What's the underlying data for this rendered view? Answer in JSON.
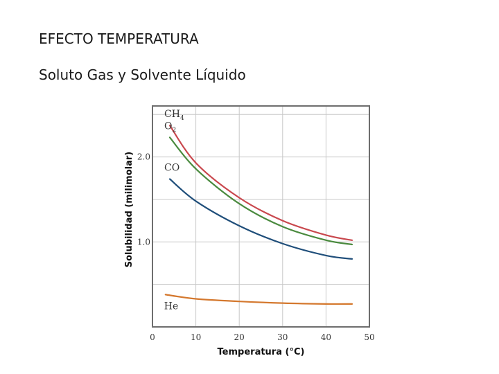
{
  "slide": {
    "title": "EFECTO TEMPERATURA",
    "subtitle": "Soluto Gas y Solvente Líquido"
  },
  "chart_data": {
    "type": "line",
    "xlabel": "Temperatura (°C)",
    "ylabel": "Solubilidad (milimolar)",
    "xlim": [
      0,
      50
    ],
    "ylim": [
      0,
      2.6
    ],
    "x_ticks": [
      "0",
      "10",
      "20",
      "30",
      "40",
      "50"
    ],
    "y_ticks": [
      {
        "value": 1.0,
        "label": "1.0"
      },
      {
        "value": 2.0,
        "label": "2.0"
      }
    ],
    "grid": true,
    "series": [
      {
        "name": "CH4",
        "label_main": "CH",
        "label_sub": "4",
        "color": "#c9484e",
        "points": [
          [
            4,
            2.37
          ],
          [
            10,
            1.93
          ],
          [
            20,
            1.52
          ],
          [
            30,
            1.25
          ],
          [
            40,
            1.08
          ],
          [
            46,
            1.02
          ]
        ]
      },
      {
        "name": "O2",
        "label_main": "O",
        "label_sub": "2",
        "color": "#4a8a3e",
        "points": [
          [
            4,
            2.23
          ],
          [
            10,
            1.86
          ],
          [
            20,
            1.45
          ],
          [
            30,
            1.18
          ],
          [
            40,
            1.02
          ],
          [
            46,
            0.97
          ]
        ]
      },
      {
        "name": "CO",
        "label_main": "CO",
        "label_sub": "",
        "color": "#1f4e7a",
        "points": [
          [
            4,
            1.74
          ],
          [
            10,
            1.48
          ],
          [
            20,
            1.19
          ],
          [
            30,
            0.98
          ],
          [
            40,
            0.84
          ],
          [
            46,
            0.8
          ]
        ]
      },
      {
        "name": "He",
        "label_main": "He",
        "label_sub": "",
        "color": "#d4782e",
        "points": [
          [
            3,
            0.38
          ],
          [
            10,
            0.33
          ],
          [
            20,
            0.3
          ],
          [
            30,
            0.28
          ],
          [
            40,
            0.27
          ],
          [
            46,
            0.27
          ]
        ]
      }
    ]
  }
}
